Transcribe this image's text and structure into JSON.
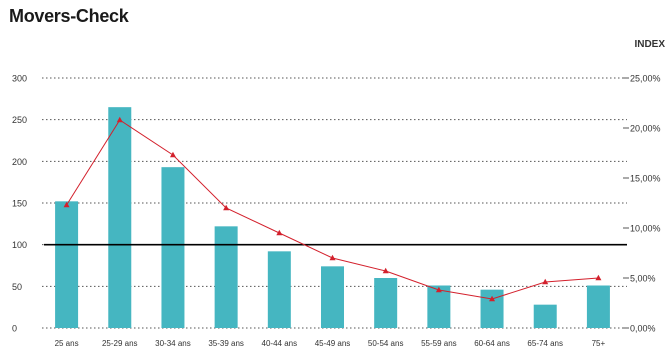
{
  "title": "Movers-Check",
  "right_axis_title": "INDEX",
  "colors": {
    "bar": "#45b6c1",
    "line": "#d3202c",
    "reference": "#000000",
    "grid": "#555555"
  },
  "chart_data": {
    "type": "bar",
    "categories": [
      "25 ans",
      "25-29 ans",
      "30-34 ans",
      "35-39 ans",
      "40-44 ans",
      "45-49 ans",
      "50-54 ans",
      "55-59 ans",
      "60-64 ans",
      "65-74 ans",
      "75+"
    ],
    "series": [
      {
        "type": "bar",
        "axis": "left",
        "values": [
          152,
          265,
          193,
          122,
          92,
          74,
          60,
          51,
          46,
          28,
          51
        ]
      },
      {
        "type": "line",
        "axis": "right",
        "marker": "triangle",
        "values": [
          12.3,
          20.8,
          17.3,
          12.0,
          9.5,
          7.0,
          5.7,
          3.8,
          2.9,
          4.6,
          5.0
        ]
      }
    ],
    "left_axis": {
      "ticks": [
        "0",
        "50",
        "100",
        "150",
        "200",
        "250",
        "300"
      ],
      "range": [
        0,
        300
      ]
    },
    "right_axis": {
      "title": "INDEX",
      "ticks": [
        "0,00%",
        "5,00%",
        "10,00%",
        "15,00%",
        "20,00%",
        "25,00%"
      ],
      "range": [
        0,
        25
      ]
    },
    "reference_line": {
      "axis": "left",
      "value": 100
    },
    "grid": "dotted horizontal"
  }
}
